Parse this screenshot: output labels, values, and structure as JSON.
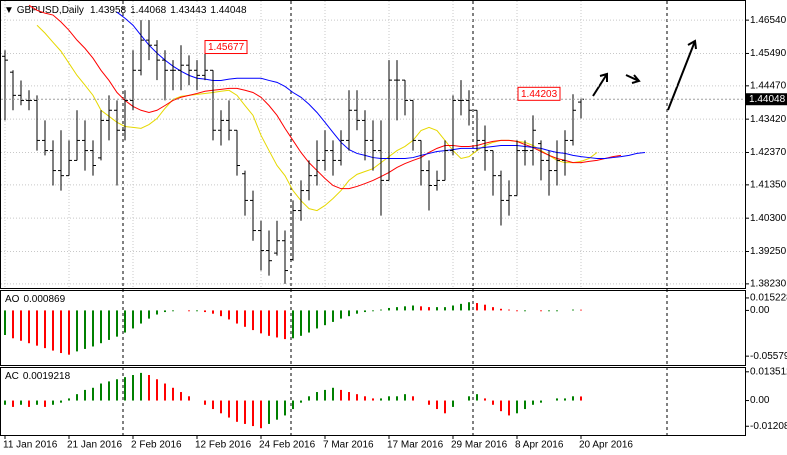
{
  "chart_data": [
    {
      "type": "ohlc",
      "title": "GBPUSD,Daily",
      "categories": [
        "11 Jan 2016",
        null,
        null,
        null,
        null,
        null,
        null,
        null,
        "21 Jan 2016",
        null,
        null,
        null,
        null,
        null,
        null,
        null,
        "2 Feb 2016",
        null,
        null,
        null,
        null,
        null,
        null,
        null,
        "12 Feb 2016",
        null,
        null,
        null,
        null,
        null,
        null,
        null,
        "24 Feb 2016",
        null,
        null,
        null,
        null,
        null,
        null,
        null,
        "7 Mar 2016",
        null,
        null,
        null,
        null,
        null,
        null,
        null,
        "17 Mar 2016",
        null,
        null,
        null,
        null,
        null,
        null,
        null,
        "29 Mar 2016",
        null,
        null,
        null,
        null,
        null,
        null,
        null,
        "8 Apr 2016",
        null,
        null,
        null,
        null,
        null,
        null,
        null,
        "20 Apr 2016",
        null,
        null,
        null,
        null,
        null,
        null,
        null,
        null
      ],
      "open": [
        1.454,
        1.449,
        1.4417,
        1.4401,
        1.4401,
        1.4275,
        1.4243,
        1.418,
        1.4164,
        1.4212,
        1.4275,
        1.4243,
        1.422,
        1.4338,
        1.437,
        1.4307,
        1.4401,
        1.4496,
        1.4591,
        1.4575,
        1.4528,
        1.4496,
        1.4496,
        1.4512,
        1.4496,
        1.448,
        1.4496,
        1.4307,
        1.4338,
        1.4307,
        1.417,
        1.4086,
        1.3991,
        1.3928,
        1.392,
        1.3959,
        1.39,
        1.4054,
        1.4117,
        1.4164,
        1.4212,
        1.4243,
        1.4212,
        1.4275,
        1.437,
        1.4338,
        1.4275,
        1.4243,
        1.4149,
        1.4465,
        1.4465,
        1.4401,
        1.4275,
        1.418,
        1.4133,
        1.4149,
        1.4243,
        1.4401,
        1.4401,
        1.437,
        1.4275,
        1.4243,
        1.4164,
        1.4086,
        1.4101,
        1.4243,
        1.4243,
        1.4265,
        1.4212,
        1.418,
        1.4212,
        1.4275,
        1.43958,
        null,
        null,
        null,
        null,
        null,
        null,
        null,
        null
      ],
      "high": [
        1.4559,
        1.4496,
        1.4464,
        1.4433,
        1.4417,
        1.4338,
        1.4275,
        1.4307,
        1.4275,
        1.437,
        1.4338,
        1.4275,
        1.437,
        1.4417,
        1.4401,
        1.4433,
        1.4559,
        1.4654,
        1.4654,
        1.4591,
        1.4559,
        1.4528,
        1.4575,
        1.4543,
        1.4528,
        1.45677,
        1.4496,
        1.437,
        1.4401,
        1.4307,
        1.418,
        1.4117,
        1.4022,
        1.3991,
        1.4022,
        1.3991,
        1.4086,
        1.4149,
        1.4212,
        1.4275,
        1.4307,
        1.4275,
        1.4307,
        1.4433,
        1.4433,
        1.437,
        1.4338,
        1.4338,
        1.4528,
        1.4528,
        1.4465,
        1.4401,
        1.4275,
        1.4212,
        1.418,
        1.4275,
        1.4417,
        1.4465,
        1.4433,
        1.437,
        1.4322,
        1.4243,
        1.418,
        1.4149,
        1.4275,
        1.4275,
        1.4354,
        1.4275,
        1.4243,
        1.4275,
        1.4307,
        1.44203,
        1.44068,
        null,
        null,
        null,
        null,
        null,
        null,
        null,
        null
      ],
      "low": [
        1.4338,
        1.437,
        1.4386,
        1.437,
        1.4243,
        1.4228,
        1.4133,
        1.4117,
        1.4164,
        1.4212,
        1.418,
        1.4164,
        1.4212,
        1.4275,
        1.4133,
        1.4275,
        1.437,
        1.448,
        1.4528,
        1.4465,
        1.4401,
        1.4433,
        1.4433,
        1.4449,
        1.4433,
        1.4465,
        1.4275,
        1.4259,
        1.4275,
        1.4164,
        1.4038,
        1.3959,
        1.3865,
        1.3849,
        1.3912,
        1.3823,
        1.3896,
        1.4022,
        1.4086,
        1.4133,
        1.418,
        1.4164,
        1.4196,
        1.4243,
        1.4307,
        1.4212,
        1.418,
        1.4038,
        1.4149,
        1.4338,
        1.4354,
        1.4243,
        1.4133,
        1.4054,
        1.4117,
        1.4149,
        1.4228,
        1.4354,
        1.4322,
        1.4243,
        1.418,
        1.4101,
        1.4007,
        1.4038,
        1.4101,
        1.4196,
        1.4196,
        1.4149,
        1.4101,
        1.4133,
        1.4164,
        1.4259,
        1.43443,
        null,
        null,
        null,
        null,
        null,
        null,
        null,
        null
      ],
      "close": [
        1.4528,
        1.4417,
        1.4401,
        1.4401,
        1.4275,
        1.4243,
        1.418,
        1.4164,
        1.4212,
        1.4275,
        1.4243,
        1.4196,
        1.4338,
        1.437,
        1.4307,
        1.4401,
        1.4496,
        1.4591,
        1.4575,
        1.4528,
        1.4496,
        1.4496,
        1.4512,
        1.4496,
        1.448,
        1.4496,
        1.4307,
        1.4338,
        1.4307,
        1.4196,
        1.4086,
        1.3991,
        1.3928,
        1.3896,
        1.3959,
        1.3865,
        1.4054,
        1.4117,
        1.4164,
        1.4212,
        1.4243,
        1.4212,
        1.4275,
        1.437,
        1.4338,
        1.4275,
        1.4243,
        1.4149,
        1.4465,
        1.4465,
        1.4401,
        1.4275,
        1.418,
        1.4133,
        1.4149,
        1.4243,
        1.4401,
        1.4401,
        1.437,
        1.4275,
        1.4243,
        1.4164,
        1.4086,
        1.4101,
        1.4243,
        1.4243,
        1.4307,
        1.4212,
        1.418,
        1.4212,
        1.4275,
        1.437,
        1.44048,
        null,
        null,
        null,
        null,
        null,
        null,
        null,
        null
      ],
      "color": "#000000",
      "series": [
        {
          "color": "#e6d800",
          "values": [
            null,
            null,
            null,
            null,
            1.4638,
            1.4613,
            1.4584,
            1.4556,
            1.4518,
            1.448,
            1.4449,
            1.4417,
            1.437,
            1.4351,
            1.4332,
            1.4319,
            1.4316,
            1.4313,
            1.4325,
            1.4344,
            1.4376,
            1.4404,
            1.4414,
            1.4417,
            1.442,
            1.4423,
            1.4426,
            1.443,
            1.4433,
            1.4417,
            1.4385,
            1.4354,
            1.4291,
            1.4243,
            1.4196,
            1.4164,
            1.4117,
            1.4085,
            1.406,
            1.4054,
            1.407,
            1.4092,
            1.4117,
            1.4149,
            1.4168,
            1.4177,
            1.4186,
            1.4205,
            1.4224,
            1.4243,
            1.4256,
            1.4275,
            1.4306,
            1.4316,
            1.4306,
            1.4275,
            1.4243,
            1.4218,
            1.4224,
            1.4243,
            1.4259,
            1.4269,
            1.4275,
            1.4275,
            1.4272,
            1.4269,
            1.4259,
            1.4243,
            1.4228,
            1.4212,
            1.4205,
            1.4205,
            1.4209,
            1.4218,
            1.4237,
            null,
            null,
            null,
            null,
            null,
            null
          ]
        },
        {
          "color": "#ff0000",
          "values": [
            null,
            null,
            null,
            1.4701,
            1.4685,
            1.4676,
            1.467,
            1.4648,
            1.4622,
            1.4591,
            1.4565,
            1.4534,
            1.4496,
            1.4464,
            1.4426,
            1.4401,
            1.4382,
            1.437,
            1.4363,
            1.437,
            1.4385,
            1.4401,
            1.4411,
            1.4417,
            1.4423,
            1.443,
            1.4433,
            1.4436,
            1.4439,
            1.4439,
            1.4433,
            1.4426,
            1.4411,
            1.4385,
            1.4354,
            1.4313,
            1.4275,
            1.4237,
            1.4205,
            1.418,
            1.4155,
            1.4133,
            1.4123,
            1.4123,
            1.413,
            1.4139,
            1.4149,
            1.4161,
            1.4174,
            1.419,
            1.4202,
            1.4212,
            1.4221,
            1.4237,
            1.425,
            1.4259,
            1.4259,
            1.4256,
            1.4256,
            1.4259,
            1.4266,
            1.4272,
            1.4275,
            1.4275,
            1.4272,
            1.4262,
            1.4253,
            1.424,
            1.4228,
            1.4218,
            1.4212,
            1.4205,
            1.4205,
            1.4209,
            1.4212,
            1.4218,
            1.4224,
            1.4228,
            null,
            null,
            null
          ]
        },
        {
          "color": "#0000ff",
          "values": [
            null,
            null,
            null,
            null,
            null,
            null,
            null,
            null,
            null,
            null,
            null,
            null,
            null,
            null,
            1.4679,
            1.466,
            1.4638,
            1.4606,
            1.4575,
            1.455,
            1.4528,
            1.4509,
            1.4493,
            1.448,
            1.4471,
            1.4468,
            1.4464,
            1.4464,
            1.4468,
            1.4471,
            1.4471,
            1.4471,
            1.4471,
            1.4464,
            1.4458,
            1.4445,
            1.4426,
            1.4411,
            1.4389,
            1.4363,
            1.4332,
            1.43,
            1.4269,
            1.4246,
            1.4234,
            1.4228,
            1.4221,
            1.4218,
            1.4218,
            1.4218,
            1.4218,
            1.4221,
            1.4228,
            1.4234,
            1.424,
            1.4243,
            1.4246,
            1.425,
            1.425,
            1.425,
            1.4253,
            1.4256,
            1.4259,
            1.4259,
            1.4259,
            1.4256,
            1.4253,
            1.425,
            1.4243,
            1.4237,
            1.4234,
            1.4228,
            1.4224,
            1.4221,
            1.4218,
            1.4218,
            1.4221,
            1.4224,
            1.4228,
            1.4234,
            1.4237
          ]
        }
      ],
      "price_labels": [
        1.45677,
        1.44203
      ],
      "price_label_color": "#ff0000",
      "ylim": [
        1.381,
        1.4708
      ],
      "yticks": [
        {
          "value": 1.4654,
          "label": "1.46540"
        },
        {
          "value": 1.4549,
          "label": "1.45490"
        },
        {
          "value": 1.4447,
          "label": "1.44470"
        },
        {
          "value": 1.4342,
          "label": "1.43420"
        },
        {
          "value": 1.4237,
          "label": "1.42370"
        },
        {
          "value": 1.4135,
          "label": "1.41350"
        },
        {
          "value": 1.403,
          "label": "1.40300"
        },
        {
          "value": 1.3925,
          "label": "1.39250"
        },
        {
          "value": 1.3823,
          "label": "1.38230"
        }
      ],
      "grid": true
    },
    {
      "type": "histogram",
      "title": "AO",
      "values": [
        -0.03,
        -0.034,
        -0.037,
        -0.04,
        -0.043,
        -0.046,
        -0.049,
        -0.052,
        -0.054,
        -0.05,
        -0.047,
        -0.044,
        -0.04,
        -0.036,
        -0.032,
        -0.027,
        -0.022,
        -0.016,
        -0.01,
        -0.005,
        -0.002,
        -0.001,
        0.0,
        -0.001,
        -0.001,
        -0.002,
        -0.004,
        -0.007,
        -0.011,
        -0.016,
        -0.02,
        -0.024,
        -0.028,
        -0.031,
        -0.033,
        -0.035,
        -0.034,
        -0.031,
        -0.027,
        -0.022,
        -0.018,
        -0.014,
        -0.01,
        -0.007,
        -0.004,
        -0.002,
        -0.001,
        0.001,
        0.003,
        0.004,
        0.005,
        0.006,
        0.005,
        0.004,
        0.004,
        0.004,
        0.006,
        0.008,
        0.01,
        0.009,
        0.007,
        0.004,
        0.002,
        0.001,
        -0.001,
        -0.001,
        0.0,
        -0.001,
        -0.001,
        -0.001,
        0.0,
        0.001,
        0.000869,
        null,
        null,
        null,
        null,
        null,
        null,
        null,
        null
      ],
      "up_color": "#008000",
      "down_color": "#ff0000",
      "ylim": [
        -0.0666,
        0.0237
      ],
      "yticks": [
        0.015228,
        {
          "value": 0,
          "label": "0.00"
        },
        -0.055795
      ]
    },
    {
      "type": "histogram",
      "title": "AC",
      "values": [
        -0.002,
        -0.003,
        -0.002,
        -0.003,
        -0.002,
        -0.003,
        -0.002,
        -0.001,
        0.001,
        0.003,
        0.005,
        0.006,
        0.008,
        0.009,
        0.01,
        0.011,
        0.012,
        0.013,
        0.012,
        0.01,
        0.008,
        0.006,
        0.004,
        0.002,
        0.0,
        -0.002,
        -0.004,
        -0.006,
        -0.008,
        -0.01,
        -0.011,
        -0.012,
        -0.013,
        -0.011,
        -0.009,
        -0.007,
        -0.004,
        -0.001,
        0.002,
        0.004,
        0.005,
        0.006,
        0.005,
        0.004,
        0.003,
        0.002,
        0.001,
        0.001,
        0.002,
        0.002,
        0.003,
        0.002,
        0.0,
        -0.002,
        -0.004,
        -0.006,
        -0.003,
        0.0,
        0.002,
        0.003,
        0.001,
        -0.002,
        -0.005,
        -0.007,
        -0.006,
        -0.004,
        -0.002,
        -0.001,
        0.0,
        0.001,
        0.001,
        0.002,
        0.0019218,
        null,
        null,
        null,
        null,
        null,
        null,
        null,
        null
      ],
      "up_color": "#008000",
      "down_color": "#ff0000",
      "ylim": [
        -0.0162,
        0.0153
      ],
      "yticks": [
        0.013512,
        {
          "value": 0,
          "label": "0.00"
        },
        -0.012085
      ]
    }
  ]
}
